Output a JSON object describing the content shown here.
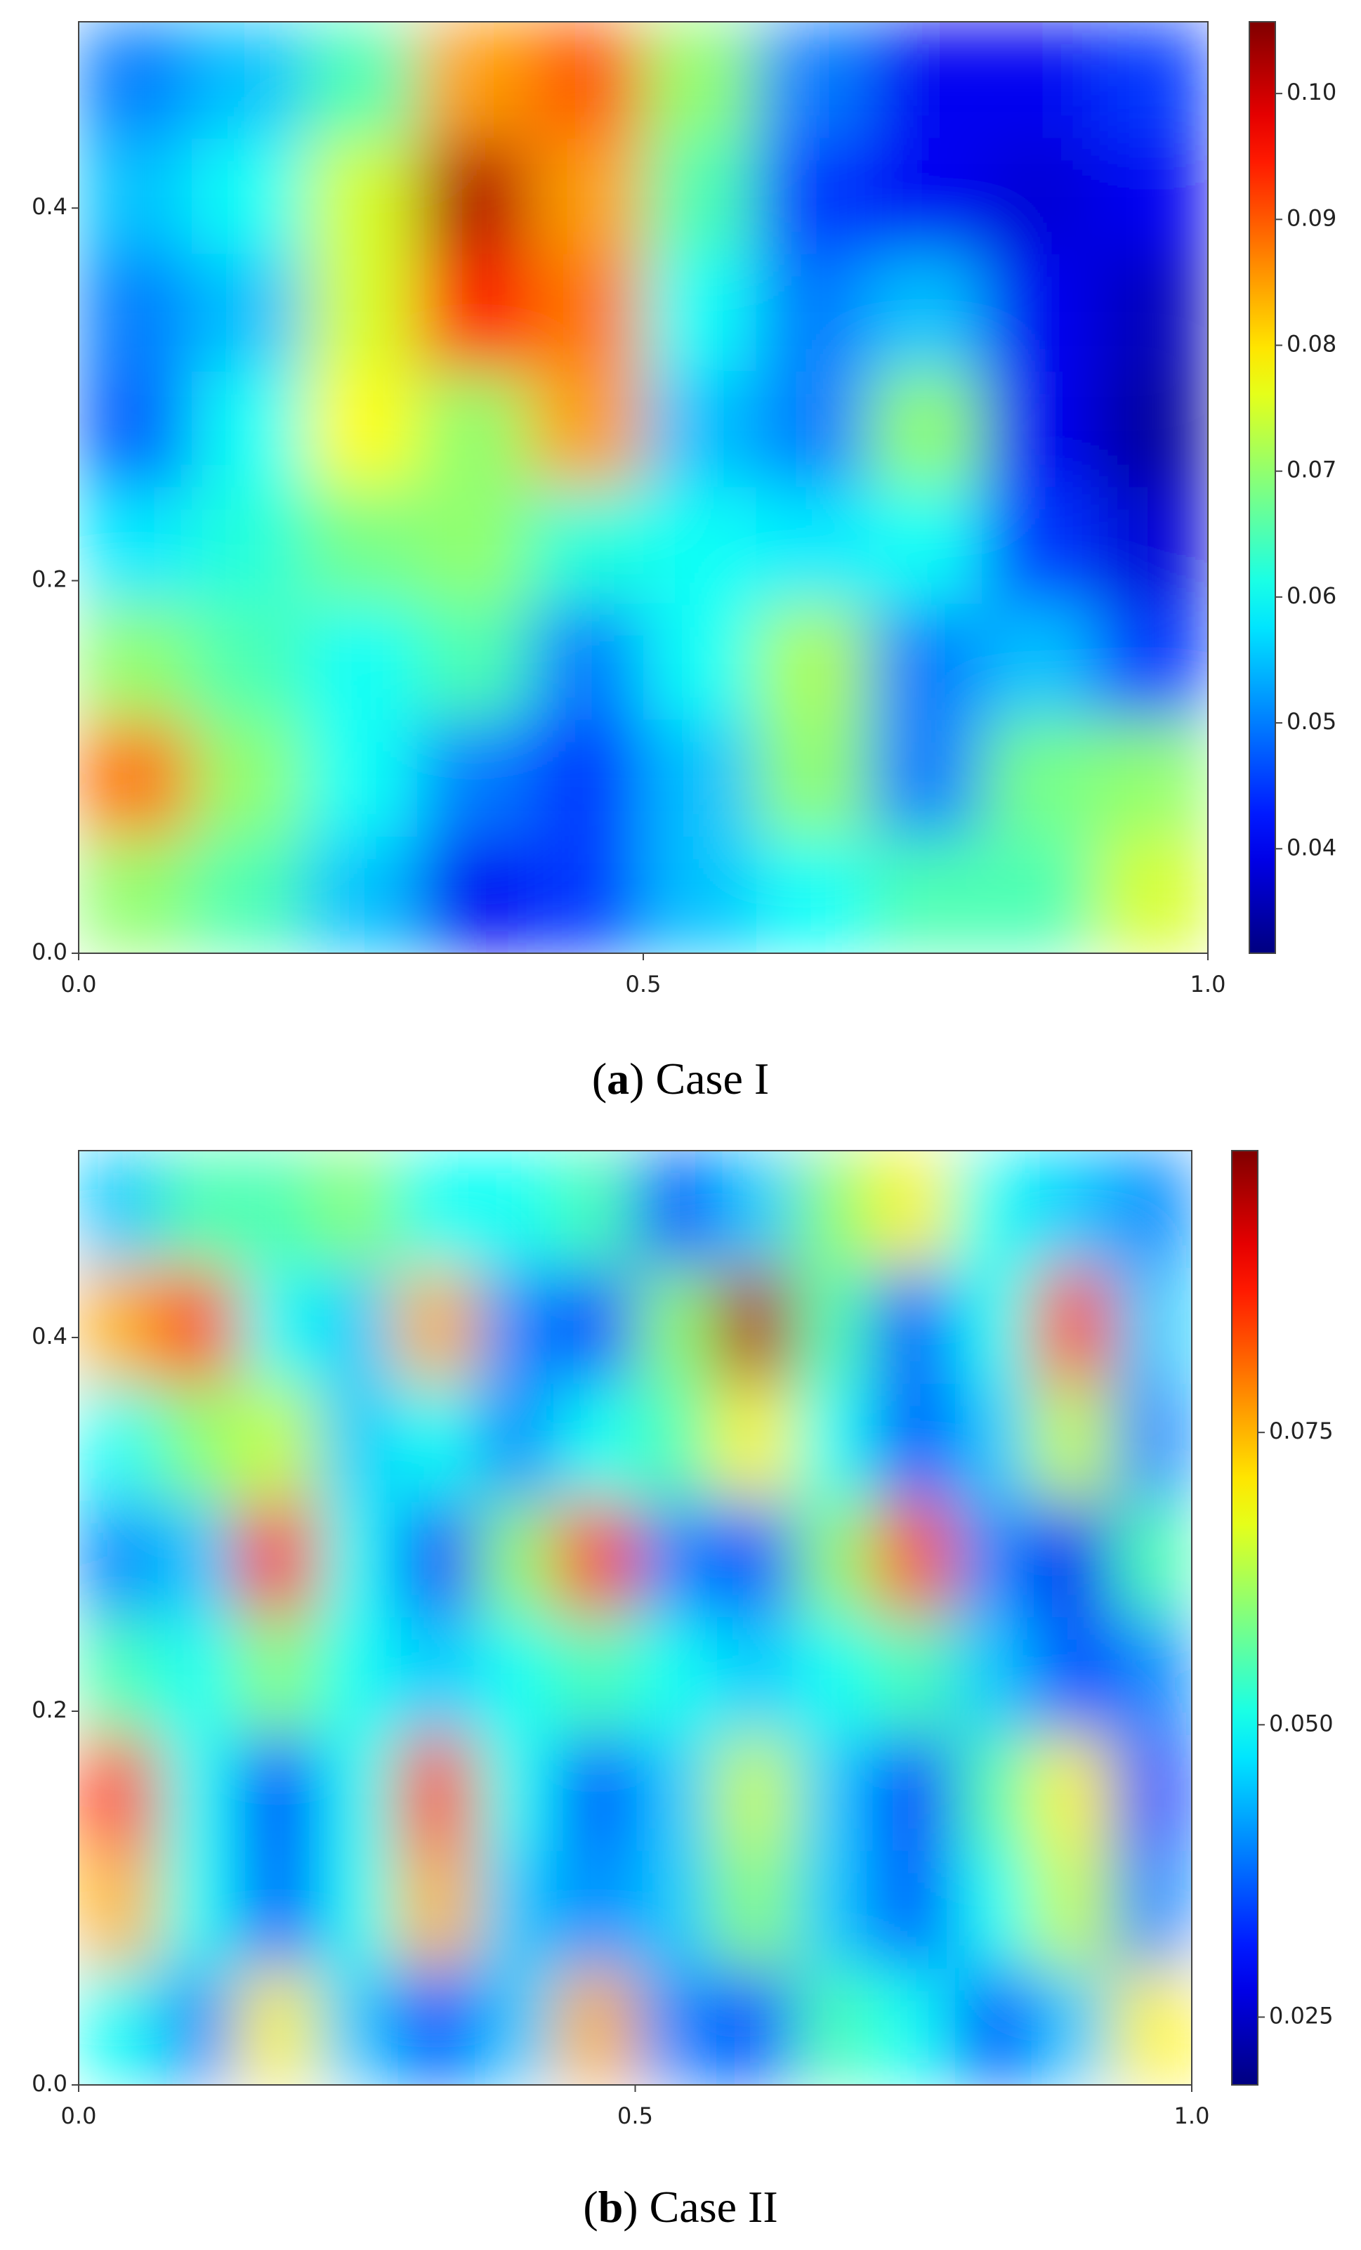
{
  "chart_data": [
    {
      "type": "heatmap",
      "colormap": "jet",
      "caption": [
        "(",
        "a",
        ") Case I"
      ],
      "x": [
        0.05,
        0.15,
        0.25,
        0.35,
        0.45,
        0.55,
        0.65,
        0.75,
        0.85,
        0.95
      ],
      "y": [
        0.469,
        0.406,
        0.344,
        0.281,
        0.219,
        0.156,
        0.094,
        0.031
      ],
      "values": [
        [
          0.05,
          0.055,
          0.065,
          0.085,
          0.09,
          0.07,
          0.05,
          0.04,
          0.04,
          0.045
        ],
        [
          0.055,
          0.06,
          0.075,
          0.102,
          0.085,
          0.065,
          0.045,
          0.04,
          0.038,
          0.04
        ],
        [
          0.05,
          0.055,
          0.075,
          0.095,
          0.088,
          0.06,
          0.05,
          0.055,
          0.04,
          0.036
        ],
        [
          0.048,
          0.06,
          0.078,
          0.07,
          0.085,
          0.055,
          0.05,
          0.07,
          0.04,
          0.034
        ],
        [
          0.058,
          0.062,
          0.068,
          0.07,
          0.062,
          0.06,
          0.058,
          0.06,
          0.045,
          0.038
        ],
        [
          0.07,
          0.065,
          0.06,
          0.065,
          0.05,
          0.06,
          0.072,
          0.05,
          0.055,
          0.045
        ],
        [
          0.088,
          0.07,
          0.06,
          0.05,
          0.045,
          0.055,
          0.07,
          0.05,
          0.068,
          0.07
        ],
        [
          0.07,
          0.065,
          0.055,
          0.04,
          0.045,
          0.055,
          0.06,
          0.065,
          0.065,
          0.075
        ]
      ],
      "xlim": [
        0,
        1
      ],
      "ylim": [
        0,
        0.5
      ],
      "xticks": [
        {
          "value": 0,
          "label": "0.0"
        },
        0.5,
        {
          "value": 1,
          "label": "1.0"
        }
      ],
      "yticks": [
        {
          "value": 0,
          "label": "0.0"
        },
        0.2,
        0.4
      ],
      "clim": [
        0.0317,
        0.1057
      ],
      "cticks": [
        0.04,
        0.05,
        0.06,
        0.07,
        0.08,
        0.09,
        {
          "value": 0.1,
          "label": "0.10"
        }
      ]
    },
    {
      "type": "heatmap",
      "colormap": "jet",
      "caption": [
        "(",
        "b",
        ") Case II"
      ],
      "x": [
        0.036,
        0.107,
        0.179,
        0.25,
        0.321,
        0.393,
        0.464,
        0.536,
        0.607,
        0.679,
        0.75,
        0.821,
        0.893,
        0.964
      ],
      "y": [
        0.469,
        0.406,
        0.344,
        0.281,
        0.219,
        0.156,
        0.094,
        0.031
      ],
      "values": [
        [
          0.045,
          0.055,
          0.055,
          0.06,
          0.05,
          0.05,
          0.055,
          0.035,
          0.045,
          0.06,
          0.07,
          0.05,
          0.045,
          0.04
        ],
        [
          0.075,
          0.085,
          0.05,
          0.045,
          0.075,
          0.04,
          0.035,
          0.06,
          0.095,
          0.055,
          0.035,
          0.05,
          0.085,
          0.045
        ],
        [
          0.05,
          0.06,
          0.065,
          0.045,
          0.05,
          0.04,
          0.05,
          0.055,
          0.07,
          0.05,
          0.035,
          0.045,
          0.065,
          0.04
        ],
        [
          0.04,
          0.045,
          0.088,
          0.05,
          0.032,
          0.06,
          0.085,
          0.04,
          0.035,
          0.06,
          0.083,
          0.04,
          0.028,
          0.055
        ],
        [
          0.055,
          0.05,
          0.06,
          0.05,
          0.045,
          0.05,
          0.055,
          0.05,
          0.045,
          0.05,
          0.055,
          0.045,
          0.035,
          0.04
        ],
        [
          0.085,
          0.05,
          0.03,
          0.05,
          0.085,
          0.05,
          0.035,
          0.045,
          0.065,
          0.045,
          0.03,
          0.055,
          0.07,
          0.035
        ],
        [
          0.075,
          0.05,
          0.035,
          0.05,
          0.075,
          0.045,
          0.04,
          0.045,
          0.06,
          0.045,
          0.035,
          0.05,
          0.065,
          0.04
        ],
        [
          0.05,
          0.04,
          0.07,
          0.045,
          0.035,
          0.045,
          0.075,
          0.04,
          0.035,
          0.055,
          0.05,
          0.035,
          0.045,
          0.07
        ]
      ],
      "xlim": [
        0,
        1
      ],
      "ylim": [
        0,
        0.5
      ],
      "xticks": [
        {
          "value": 0,
          "label": "0.0"
        },
        0.5,
        {
          "value": 1,
          "label": "1.0"
        }
      ],
      "yticks": [
        {
          "value": 0,
          "label": "0.0"
        },
        0.2,
        0.4
      ],
      "clim": [
        0.0192,
        0.0991
      ],
      "cticks": [
        0.025,
        {
          "value": 0.05,
          "label": "0.050"
        },
        0.075
      ]
    }
  ]
}
